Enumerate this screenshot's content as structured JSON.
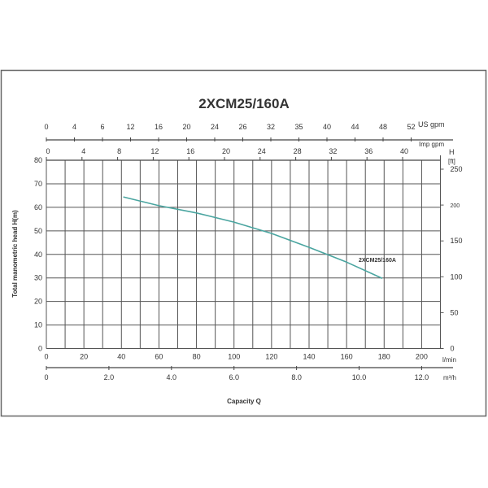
{
  "chart_data": {
    "type": "line",
    "title": "2XCM25/160A",
    "xlabel": "Capacity Q",
    "ylabel": "Total manometric head H(m)",
    "xlim": [
      0,
      210
    ],
    "ylim": [
      0,
      80
    ],
    "grid": true,
    "x_unit": "l/min",
    "x_ticks": [
      0,
      20,
      40,
      60,
      80,
      100,
      120,
      140,
      160,
      180,
      200
    ],
    "y_ticks": [
      0,
      10,
      20,
      30,
      40,
      50,
      60,
      70,
      80
    ],
    "series": [
      {
        "name": "2XCM25/160A",
        "color": "#4aa5a0",
        "x": [
          41,
          60,
          80,
          100,
          120,
          140,
          160,
          179
        ],
        "y": [
          64.4,
          60.7,
          57.6,
          53.7,
          48.9,
          43.0,
          36.7,
          29.8
        ]
      }
    ],
    "secondary_axes": {
      "us_gpm": {
        "unit": "US gpm",
        "tick_labels": [
          "0",
          "4",
          "6",
          "12",
          "16",
          "20",
          "24",
          "26",
          "32",
          "35",
          "40",
          "44",
          "48",
          "52"
        ]
      },
      "imp_gpm": {
        "unit": "Imp gpm",
        "tick_labels": [
          "0",
          "4",
          "8",
          "12",
          "16",
          "20",
          "24",
          "28",
          "32",
          "36",
          "40"
        ]
      },
      "m3h": {
        "unit": "m³/h",
        "ticks": [
          0,
          2,
          4,
          6,
          8,
          10,
          12
        ],
        "tick_labels": [
          "0",
          "2.0",
          "4.0",
          "6.0",
          "8.0",
          "10.0",
          "12.0"
        ]
      },
      "head_ft": {
        "unit_top": "H",
        "unit_bottom": "[ft]",
        "ticks": [
          0,
          50,
          100,
          150,
          200,
          250
        ],
        "tick_labels": [
          "0",
          "50",
          "100",
          "150",
          "200",
          "250"
        ]
      }
    }
  }
}
